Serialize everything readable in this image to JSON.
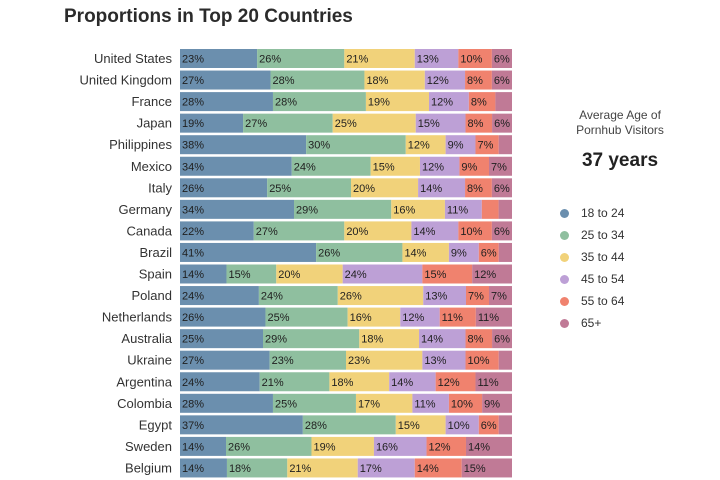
{
  "chart_data": {
    "type": "bar",
    "orientation": "horizontal-stacked-100",
    "title": "Proportions in Top 20 Countries",
    "categories": [
      "United States",
      "United Kingdom",
      "France",
      "Japan",
      "Philippines",
      "Mexico",
      "Italy",
      "Germany",
      "Canada",
      "Brazil",
      "Spain",
      "Poland",
      "Netherlands",
      "Australia",
      "Ukraine",
      "Argentina",
      "Colombia",
      "Egypt",
      "Sweden",
      "Belgium"
    ],
    "series": [
      {
        "name": "18 to 24",
        "color": "#6b8fae",
        "values": [
          23,
          27,
          28,
          19,
          38,
          34,
          26,
          34,
          22,
          41,
          14,
          24,
          26,
          25,
          27,
          24,
          28,
          37,
          14,
          14
        ]
      },
      {
        "name": "25 to 34",
        "color": "#8fbf9f",
        "values": [
          26,
          28,
          28,
          27,
          30,
          24,
          25,
          29,
          27,
          26,
          15,
          24,
          25,
          29,
          23,
          21,
          25,
          28,
          26,
          18
        ]
      },
      {
        "name": "35 to 44",
        "color": "#f1d27a",
        "values": [
          21,
          18,
          19,
          25,
          12,
          15,
          20,
          16,
          20,
          14,
          20,
          26,
          16,
          18,
          23,
          18,
          17,
          15,
          19,
          21
        ]
      },
      {
        "name": "45 to 54",
        "color": "#bda0d6",
        "values": [
          13,
          12,
          12,
          15,
          9,
          12,
          14,
          11,
          14,
          9,
          24,
          13,
          12,
          14,
          13,
          14,
          11,
          10,
          16,
          17
        ]
      },
      {
        "name": "55 to 64",
        "color": "#f0826e",
        "values": [
          10,
          8,
          8,
          8,
          7,
          9,
          8,
          5,
          10,
          6,
          15,
          7,
          11,
          8,
          10,
          12,
          10,
          6,
          12,
          14
        ]
      },
      {
        "name": "65+",
        "color": "#c07a96",
        "values": [
          6,
          6,
          5,
          6,
          4,
          7,
          6,
          4,
          6,
          4,
          12,
          7,
          11,
          6,
          4,
          11,
          9,
          4,
          14,
          15
        ]
      }
    ],
    "labels": [
      [
        "23%",
        "26%",
        "21%",
        "13%",
        "10%",
        "6%"
      ],
      [
        "27%",
        "28%",
        "18%",
        "12%",
        "8%",
        "6%"
      ],
      [
        "28%",
        "28%",
        "19%",
        "12%",
        "8%",
        ""
      ],
      [
        "19%",
        "27%",
        "25%",
        "15%",
        "8%",
        "6%"
      ],
      [
        "38%",
        "30%",
        "12%",
        "9%",
        "7%",
        ""
      ],
      [
        "34%",
        "24%",
        "15%",
        "12%",
        "9%",
        "7%"
      ],
      [
        "26%",
        "25%",
        "20%",
        "14%",
        "8%",
        "6%"
      ],
      [
        "34%",
        "29%",
        "16%",
        "11%",
        "",
        ""
      ],
      [
        "22%",
        "27%",
        "20%",
        "14%",
        "10%",
        "6%"
      ],
      [
        "41%",
        "26%",
        "14%",
        "9%",
        "6%",
        ""
      ],
      [
        "14%",
        "15%",
        "20%",
        "24%",
        "15%",
        "12%"
      ],
      [
        "24%",
        "24%",
        "26%",
        "13%",
        "7%",
        "7%"
      ],
      [
        "26%",
        "25%",
        "16%",
        "12%",
        "11%",
        "11%"
      ],
      [
        "25%",
        "29%",
        "18%",
        "14%",
        "8%",
        "6%"
      ],
      [
        "27%",
        "23%",
        "23%",
        "13%",
        "10%",
        ""
      ],
      [
        "24%",
        "21%",
        "18%",
        "14%",
        "12%",
        "11%"
      ],
      [
        "28%",
        "25%",
        "17%",
        "11%",
        "10%",
        "9%"
      ],
      [
        "37%",
        "28%",
        "15%",
        "10%",
        "6%",
        ""
      ],
      [
        "14%",
        "26%",
        "19%",
        "16%",
        "12%",
        "14%"
      ],
      [
        "14%",
        "18%",
        "21%",
        "17%",
        "14%",
        "15%"
      ]
    ],
    "xlim": [
      0,
      100
    ]
  },
  "side_panel": {
    "avg_label_line1": "Average Age of",
    "avg_label_line2": "Pornhub Visitors",
    "avg_value": "37 years"
  }
}
